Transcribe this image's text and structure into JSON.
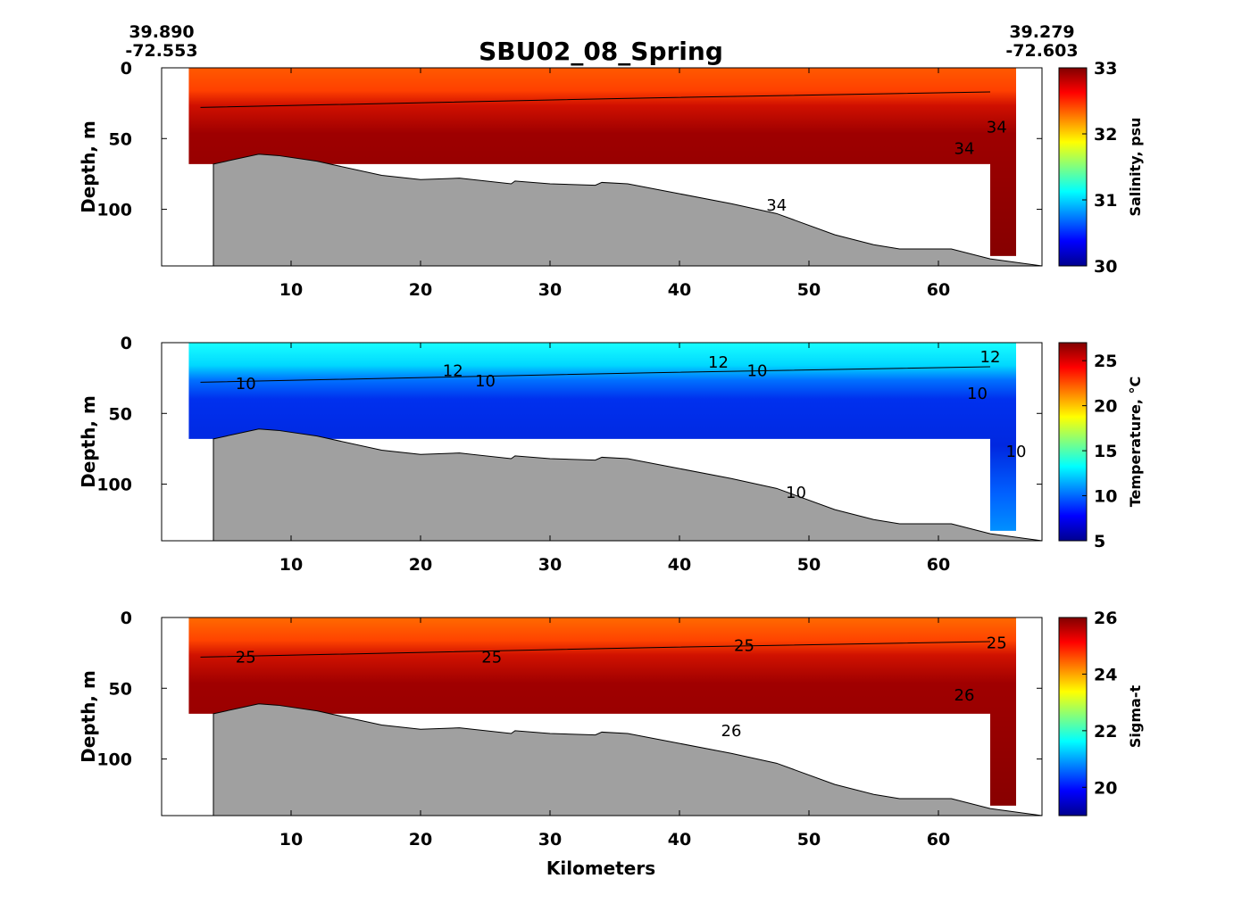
{
  "chart_data": {
    "type": "heatmap",
    "title": "SBU02_08_Spring",
    "start": {
      "lat": "39.890",
      "lon": "-72.553"
    },
    "end": {
      "lat": "39.279",
      "lon": "-72.603"
    },
    "xlabel": "Kilometers",
    "xlim": [
      0,
      68
    ],
    "xticks": [
      "10",
      "20",
      "30",
      "40",
      "50",
      "60"
    ],
    "bathymetry": {
      "x_km": [
        4,
        7.5,
        9,
        12,
        17,
        20,
        23,
        27,
        27.3,
        30,
        33.5,
        34,
        36,
        40,
        44,
        47.5,
        52,
        55,
        57,
        61,
        64,
        68
      ],
      "depth_m": [
        68,
        61,
        62,
        66,
        76,
        79,
        78,
        82,
        80,
        82,
        83,
        81,
        82,
        89,
        96,
        103,
        118,
        125,
        128,
        128,
        135,
        140
      ]
    },
    "panels": [
      {
        "ylabel": "Depth, m",
        "ylim": [
          0,
          140
        ],
        "yticks": [
          "0",
          "50",
          "100"
        ],
        "colorbar": {
          "label": "Salinity, psu",
          "range": [
            30,
            33
          ],
          "ticks": [
            "30",
            "31",
            "32",
            "33"
          ]
        },
        "surface_value": 32.4,
        "deep_value": 33.4,
        "contour_labels": [
          "34",
          "34",
          "34"
        ]
      },
      {
        "ylabel": "Depth, m",
        "ylim": [
          0,
          140
        ],
        "yticks": [
          "0",
          "50",
          "100"
        ],
        "colorbar": {
          "label": "Temperature, °C",
          "range": [
            5,
            27
          ],
          "ticks": [
            "5",
            "10",
            "15",
            "20",
            "25"
          ]
        },
        "surface_value": 13,
        "deep_value": 7,
        "contour_labels": [
          "10",
          "12",
          "10",
          "12",
          "10",
          "12",
          "10",
          "10",
          "10"
        ]
      },
      {
        "ylabel": "Depth, m",
        "ylim": [
          0,
          140
        ],
        "yticks": [
          "0",
          "50",
          "100"
        ],
        "colorbar": {
          "label": "Sigma-t",
          "range": [
            19,
            26
          ],
          "ticks": [
            "20",
            "22",
            "24",
            "26"
          ]
        },
        "surface_value": 24.6,
        "deep_value": 25.9,
        "contour_labels": [
          "25",
          "25",
          "25",
          "25",
          "26",
          "26"
        ]
      }
    ]
  }
}
